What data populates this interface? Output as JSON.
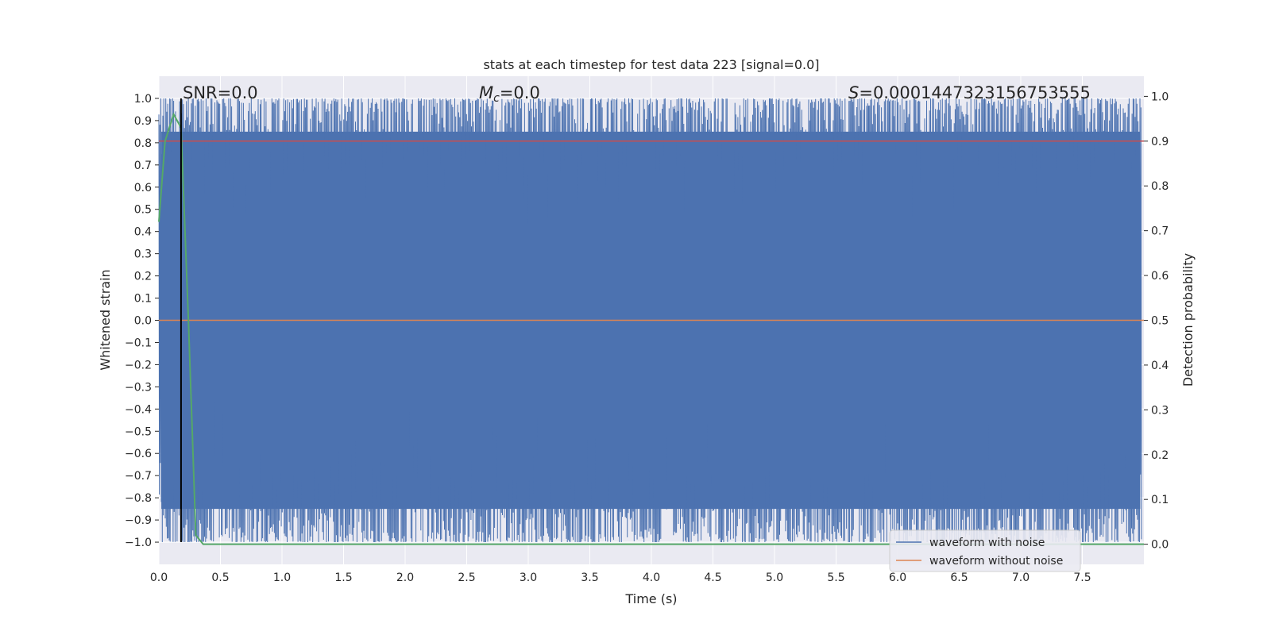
{
  "chart_data": {
    "type": "line",
    "title": "stats at each timestep for test data 223 [signal=0.0]",
    "xlabel": "Time (s)",
    "ylabel": "Whitened strain",
    "y2label": "Detection probability",
    "xlim": [
      0.0,
      8.0
    ],
    "ylim": [
      -1.1,
      1.1
    ],
    "y2lim": [
      -0.045,
      1.045
    ],
    "grid": true,
    "legend_position": "lower-right",
    "x_ticks": [
      "0.0",
      "0.5",
      "1.0",
      "1.5",
      "2.0",
      "2.5",
      "3.0",
      "3.5",
      "4.0",
      "4.5",
      "5.0",
      "5.5",
      "6.0",
      "6.5",
      "7.0",
      "7.5"
    ],
    "y_ticks": [
      "1.0",
      "0.9",
      "0.8",
      "0.7",
      "0.6",
      "0.5",
      "0.4",
      "0.3",
      "0.2",
      "0.1",
      "0.0",
      "−0.1",
      "−0.2",
      "−0.3",
      "−0.4",
      "−0.5",
      "−0.6",
      "−0.7",
      "−0.8",
      "−0.9",
      "−1.0"
    ],
    "y2_ticks": [
      "1.0",
      "0.9",
      "0.8",
      "0.7",
      "0.6",
      "0.5",
      "0.4",
      "0.3",
      "0.2",
      "0.1",
      "0.0"
    ],
    "annotations": {
      "snr": "SNR=0.0",
      "mc_symbol": "M",
      "mc_sub": "c",
      "mc_value": "=0.0",
      "s_symbol": "S",
      "s_value": "=0.0001447323156753555"
    },
    "vertical_marker_x": 0.18,
    "series": [
      {
        "name": "waveform with noise",
        "color": "#4c72b0",
        "axis": "left",
        "description_values": {
          "min": -1.0,
          "max": 1.0,
          "sample_count": 2000,
          "x_range": [
            0.0,
            8.0
          ]
        }
      },
      {
        "name": "waveform without noise",
        "color": "#dd8452",
        "axis": "left",
        "x": [
          0.0,
          8.0
        ],
        "y": [
          0.0,
          0.0
        ]
      },
      {
        "name": "",
        "color": "#55a868",
        "axis": "right",
        "x": [
          0.0,
          0.05,
          0.12,
          0.18,
          0.24,
          0.3,
          0.36,
          0.42,
          8.0
        ],
        "y": [
          0.72,
          0.9,
          0.96,
          0.93,
          0.5,
          0.02,
          0.0,
          0.0,
          0.0
        ]
      },
      {
        "name": "",
        "color": "#c44e52",
        "axis": "right",
        "x": [
          0.0,
          8.0
        ],
        "y": [
          0.9,
          0.9
        ]
      }
    ]
  }
}
